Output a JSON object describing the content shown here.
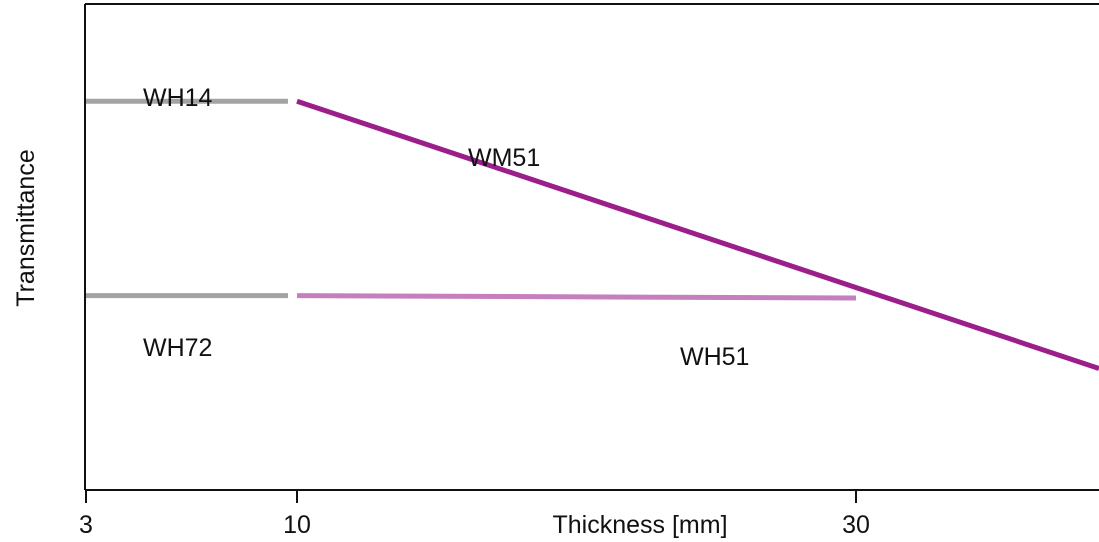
{
  "chart_data": {
    "type": "line",
    "title": "",
    "xlabel": "Thickness [mm]",
    "ylabel": "Transmittance",
    "x_ticks": [
      3,
      10,
      30
    ],
    "x_tick_labels": [
      "3",
      "10",
      "30"
    ],
    "xlim": [
      3,
      38
    ],
    "ylim": [
      0,
      1
    ],
    "y_ticks_shown": false,
    "grid": false,
    "legend": "none",
    "series": [
      {
        "name": "WH14",
        "color": "#a3a3a3",
        "x": [
          3,
          9.7
        ],
        "y": [
          0.8,
          0.8
        ]
      },
      {
        "name": "WH72",
        "color": "#a3a3a3",
        "x": [
          3,
          9.7
        ],
        "y": [
          0.4,
          0.4
        ]
      },
      {
        "name": "WM51",
        "color": "#9b1e8a",
        "x": [
          10,
          38
        ],
        "y": [
          0.8,
          0.25
        ]
      },
      {
        "name": "WH51",
        "color": "#c57fbd",
        "x": [
          10,
          30
        ],
        "y": [
          0.4,
          0.395
        ]
      }
    ]
  }
}
